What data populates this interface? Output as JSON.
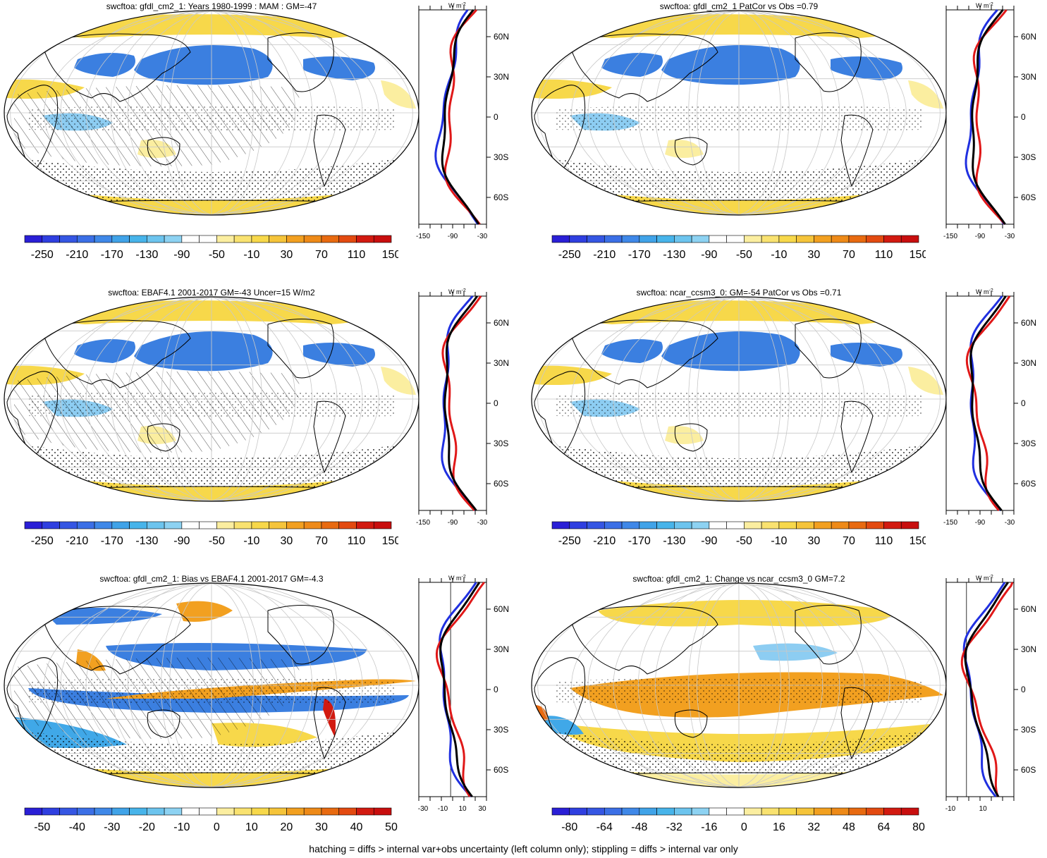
{
  "footer": "hatching = diffs > internal var+obs uncertainty (left column only); stippling = diffs > internal var only",
  "colors": {
    "blue_dark": "#2a1fd6",
    "blue": "#3b7fe0",
    "blue_mid": "#40a8e8",
    "blue_light": "#8dcdf2",
    "yellow_light": "#fbeea0",
    "yellow": "#f7d84a",
    "orange": "#f2a020",
    "orange_dark": "#e86a10",
    "red": "#d21a10",
    "land": "#ffffff",
    "ocean_white": "#ffffff",
    "profile_model": "#2030e0",
    "profile_obs": "#e01818",
    "profile_ref": "#000000"
  },
  "panels": [
    {
      "id": "p1",
      "title": "swcftoa: gfdl_cm2_1: Years 1980-1999 : MAM : GM=-47",
      "colorbar_labels": [
        "-250",
        "-210",
        "-170",
        "-130",
        "-90",
        "-50",
        "-10",
        "30",
        "70",
        "110",
        "150"
      ],
      "colorbar_colors": [
        "#2a1fd6",
        "#2f3fe0",
        "#3556e3",
        "#3b6fe6",
        "#3f88e8",
        "#40a3e8",
        "#47b4ea",
        "#6cc4ee",
        "#8dd2f2",
        "#ffffff",
        "#ffffff",
        "#fbeea0",
        "#f9e270",
        "#f7d84a",
        "#f5c43a",
        "#f2a020",
        "#ee8a18",
        "#e86a10",
        "#e34a10",
        "#d21a10",
        "#c80e0e"
      ],
      "profile_xlabels": [
        "-150",
        "-90",
        "-30"
      ],
      "profile_unit": "W m",
      "lat_labels": [
        "60N",
        "30N",
        "0",
        "30S",
        "60S"
      ],
      "overlay": "hatch"
    },
    {
      "id": "p2",
      "title": "swcftoa: gfdl_cm2_1 PatCor vs Obs =0.79",
      "colorbar_labels": [
        "-250",
        "-210",
        "-170",
        "-130",
        "-90",
        "-50",
        "-10",
        "30",
        "70",
        "110",
        "150"
      ],
      "colorbar_colors": [
        "#2a1fd6",
        "#2f3fe0",
        "#3556e3",
        "#3b6fe6",
        "#3f88e8",
        "#40a3e8",
        "#47b4ea",
        "#6cc4ee",
        "#8dd2f2",
        "#ffffff",
        "#ffffff",
        "#fbeea0",
        "#f9e270",
        "#f7d84a",
        "#f5c43a",
        "#f2a020",
        "#ee8a18",
        "#e86a10",
        "#e34a10",
        "#d21a10",
        "#c80e0e"
      ],
      "profile_xlabels": [
        "-150",
        "-90",
        "-30"
      ],
      "profile_unit": "W m",
      "lat_labels": [
        "60N",
        "30N",
        "0",
        "30S",
        "60S"
      ],
      "overlay": "stipple"
    },
    {
      "id": "p3",
      "title": "swcftoa: EBAF4.1 2001-2017 GM=-43 Uncer=15 W/m2",
      "colorbar_labels": [
        "-250",
        "-210",
        "-170",
        "-130",
        "-90",
        "-50",
        "-10",
        "30",
        "70",
        "110",
        "150"
      ],
      "colorbar_colors": [
        "#2a1fd6",
        "#2f3fe0",
        "#3556e3",
        "#3b6fe6",
        "#3f88e8",
        "#40a3e8",
        "#47b4ea",
        "#6cc4ee",
        "#8dd2f2",
        "#ffffff",
        "#ffffff",
        "#fbeea0",
        "#f9e270",
        "#f7d84a",
        "#f5c43a",
        "#f2a020",
        "#ee8a18",
        "#e86a10",
        "#e34a10",
        "#d21a10",
        "#c80e0e"
      ],
      "profile_xlabels": [
        "-150",
        "-90",
        "-30"
      ],
      "profile_unit": "W m",
      "lat_labels": [
        "60N",
        "30N",
        "0",
        "30S",
        "60S"
      ],
      "overlay": "hatch"
    },
    {
      "id": "p4",
      "title": "swcftoa: ncar_ccsm3_0: GM=-54 PatCor vs Obs =0.71",
      "colorbar_labels": [
        "-250",
        "-210",
        "-170",
        "-130",
        "-90",
        "-50",
        "-10",
        "30",
        "70",
        "110",
        "150"
      ],
      "colorbar_colors": [
        "#2a1fd6",
        "#2f3fe0",
        "#3556e3",
        "#3b6fe6",
        "#3f88e8",
        "#40a3e8",
        "#47b4ea",
        "#6cc4ee",
        "#8dd2f2",
        "#ffffff",
        "#ffffff",
        "#fbeea0",
        "#f9e270",
        "#f7d84a",
        "#f5c43a",
        "#f2a020",
        "#ee8a18",
        "#e86a10",
        "#e34a10",
        "#d21a10",
        "#c80e0e"
      ],
      "profile_xlabels": [
        "-150",
        "-90",
        "-30"
      ],
      "profile_unit": "W m",
      "lat_labels": [
        "60N",
        "30N",
        "0",
        "30S",
        "60S"
      ],
      "overlay": "stipple"
    },
    {
      "id": "p5",
      "title": "swcftoa: gfdl_cm2_1: Bias vs EBAF4.1 2001-2017 GM=-4.3",
      "colorbar_labels": [
        "-50",
        "-40",
        "-30",
        "-20",
        "-10",
        "0",
        "10",
        "20",
        "30",
        "40",
        "50"
      ],
      "colorbar_colors": [
        "#2a1fd6",
        "#2f3fe0",
        "#3556e3",
        "#3b6fe6",
        "#3f88e8",
        "#40a3e8",
        "#47b4ea",
        "#6cc4ee",
        "#8dd2f2",
        "#ffffff",
        "#ffffff",
        "#fbeea0",
        "#f9e270",
        "#f7d84a",
        "#f5c43a",
        "#f2a020",
        "#ee8a18",
        "#e86a10",
        "#e34a10",
        "#d21a10",
        "#c80e0e"
      ],
      "profile_xlabels": [
        "-30",
        "-10",
        "10",
        "30"
      ],
      "profile_unit": "W m",
      "lat_labels": [
        "60N",
        "30N",
        "0",
        "30S",
        "60S"
      ],
      "overlay": "hatch"
    },
    {
      "id": "p6",
      "title": "swcftoa: gfdl_cm2_1: Change vs ncar_ccsm3_0 GM=7.2",
      "colorbar_labels": [
        "-80",
        "-64",
        "-48",
        "-32",
        "-16",
        "0",
        "16",
        "32",
        "48",
        "64",
        "80"
      ],
      "colorbar_colors": [
        "#2a1fd6",
        "#2f3fe0",
        "#3556e3",
        "#3b6fe6",
        "#3f88e8",
        "#40a3e8",
        "#47b4ea",
        "#6cc4ee",
        "#8dd2f2",
        "#ffffff",
        "#ffffff",
        "#fbeea0",
        "#f9e270",
        "#f7d84a",
        "#f5c43a",
        "#f2a020",
        "#ee8a18",
        "#e86a10",
        "#e34a10",
        "#d21a10",
        "#c80e0e"
      ],
      "profile_xlabels": [
        "-10",
        "10"
      ],
      "profile_unit": "W m",
      "lat_labels": [
        "60N",
        "30N",
        "0",
        "30S",
        "60S"
      ],
      "overlay": "stipple"
    }
  ]
}
